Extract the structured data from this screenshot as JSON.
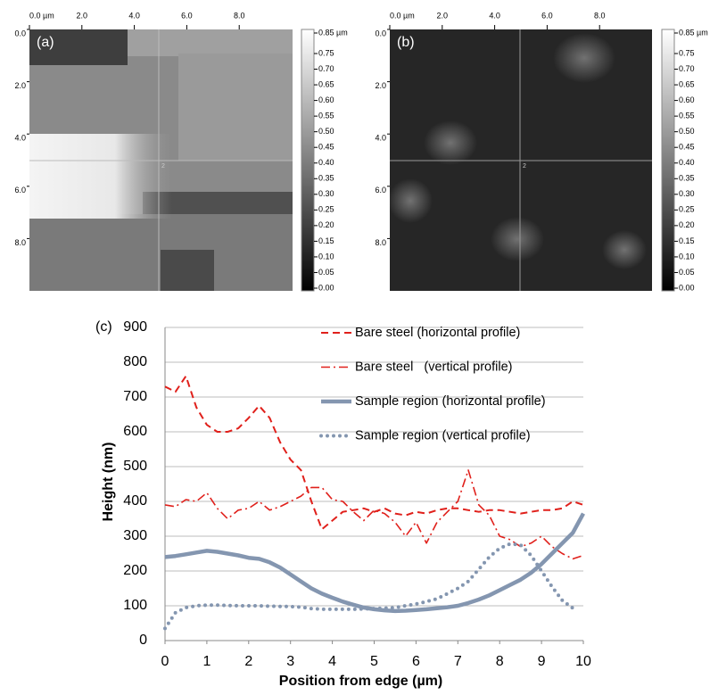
{
  "images": [
    {
      "label": "(a)",
      "marker": "2",
      "xticks": [
        "0.0 µm",
        "2.0",
        "4.0",
        "6.0",
        "8.0"
      ],
      "yticks": [
        "0.0",
        "2.0",
        "4.0",
        "6.0",
        "8.0"
      ],
      "colorbar": [
        "0.85 µm",
        "0.75",
        "0.70",
        "0.65",
        "0.60",
        "0.55",
        "0.50",
        "0.45",
        "0.40",
        "0.35",
        "0.30",
        "0.25",
        "0.20",
        "0.15",
        "0.10",
        "0.05",
        "0.00"
      ]
    },
    {
      "label": "(b)",
      "marker": "2",
      "xticks": [
        "0.0 µm",
        "2.0",
        "4.0",
        "6.0",
        "8.0"
      ],
      "yticks": [
        "0.0",
        "2.0",
        "4.0",
        "6.0",
        "8.0"
      ],
      "colorbar": [
        "0.85 µm",
        "0.75",
        "0.70",
        "0.65",
        "0.60",
        "0.55",
        "0.50",
        "0.45",
        "0.40",
        "0.35",
        "0.30",
        "0.25",
        "0.20",
        "0.15",
        "0.10",
        "0.05",
        "0.00"
      ]
    }
  ],
  "chart_data": {
    "type": "line",
    "label": "(c)",
    "xlabel": "Position from edge (µm)",
    "ylabel": "Height (nm)",
    "x": [
      0,
      0.25,
      0.5,
      0.75,
      1,
      1.25,
      1.5,
      1.75,
      2,
      2.25,
      2.5,
      2.75,
      3,
      3.25,
      3.5,
      3.75,
      4,
      4.25,
      4.5,
      4.75,
      5,
      5.25,
      5.5,
      5.75,
      6,
      6.25,
      6.5,
      6.75,
      7,
      7.25,
      7.5,
      7.75,
      8,
      8.25,
      8.5,
      8.75,
      9,
      9.25,
      9.5,
      9.75,
      10
    ],
    "xlim": [
      0,
      10
    ],
    "xticks": [
      0,
      1,
      2,
      3,
      4,
      5,
      6,
      7,
      8,
      9,
      10
    ],
    "ylim": [
      0,
      900
    ],
    "yticks": [
      0,
      100,
      200,
      300,
      400,
      500,
      600,
      700,
      800,
      900
    ],
    "grid": true,
    "series": [
      {
        "name": "Bare steel (horizontal profile)",
        "color": "#e0201b",
        "style": "dashed",
        "values": [
          730,
          715,
          760,
          670,
          620,
          600,
          600,
          610,
          640,
          675,
          640,
          570,
          520,
          490,
          400,
          320,
          345,
          370,
          375,
          380,
          370,
          380,
          365,
          360,
          370,
          365,
          375,
          380,
          380,
          375,
          370,
          375,
          375,
          370,
          365,
          370,
          375,
          375,
          380,
          400,
          390
        ]
      },
      {
        "name": "Bare steel   (vertical profile)",
        "color": "#e0201b",
        "style": "dashdot",
        "values": [
          390,
          385,
          405,
          400,
          425,
          380,
          350,
          375,
          380,
          400,
          375,
          385,
          400,
          415,
          440,
          440,
          405,
          400,
          370,
          345,
          375,
          365,
          340,
          300,
          340,
          280,
          340,
          370,
          400,
          490,
          390,
          360,
          300,
          290,
          270,
          280,
          300,
          270,
          250,
          235,
          245
        ]
      },
      {
        "name": "Sample region (horizontal profile)",
        "color": "#8496b0",
        "style": "solid",
        "values": [
          240,
          243,
          248,
          253,
          258,
          255,
          250,
          245,
          238,
          235,
          225,
          210,
          190,
          170,
          150,
          135,
          123,
          112,
          103,
          95,
          90,
          87,
          85,
          86,
          88,
          90,
          93,
          96,
          100,
          108,
          118,
          130,
          145,
          160,
          175,
          195,
          220,
          250,
          280,
          310,
          365
        ]
      },
      {
        "name": "Sample region (vertical profile)",
        "color": "#8496b0",
        "style": "dotted",
        "values": [
          35,
          80,
          95,
          100,
          102,
          102,
          101,
          100,
          100,
          100,
          99,
          98,
          98,
          96,
          92,
          90,
          90,
          90,
          90,
          91,
          92,
          93,
          95,
          100,
          105,
          112,
          120,
          135,
          150,
          170,
          205,
          240,
          265,
          278,
          275,
          245,
          200,
          155,
          115,
          93,
          null
        ]
      }
    ]
  }
}
